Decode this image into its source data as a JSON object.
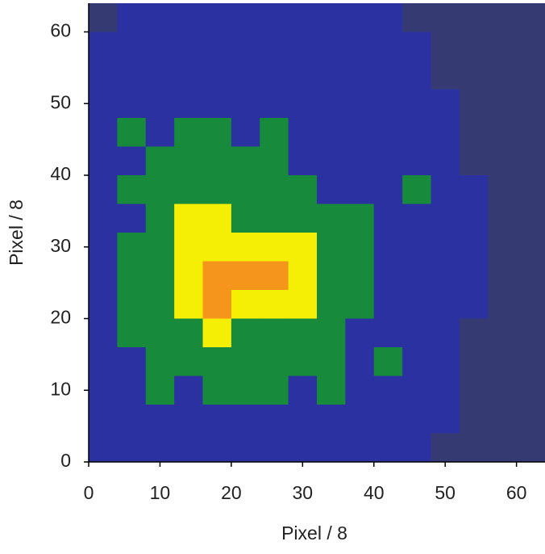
{
  "chart_data": {
    "type": "contour",
    "xlabel": "Pixel / 8",
    "ylabel": "Pixel / 8",
    "xlim": [
      0,
      64
    ],
    "ylim": [
      0,
      64
    ],
    "xticks": [
      0,
      10,
      20,
      30,
      40,
      50,
      60
    ],
    "yticks": [
      0,
      10,
      20,
      30,
      40,
      50,
      60
    ],
    "level_colors": [
      "#353a72",
      "#2b31a0",
      "#178a3c",
      "#f5ef06",
      "#f5951c"
    ],
    "z": [
      [
        0,
        1,
        1,
        1,
        1,
        1,
        1,
        1,
        1,
        1,
        1,
        0,
        0,
        0,
        0,
        0
      ],
      [
        1,
        1,
        1,
        1,
        1,
        1,
        1,
        1,
        1,
        1,
        1,
        1,
        0,
        0,
        0,
        0
      ],
      [
        1,
        1,
        1,
        1,
        1,
        1,
        1,
        1,
        1,
        1,
        1,
        1,
        0,
        0,
        0,
        0
      ],
      [
        1,
        1,
        1,
        1,
        1,
        1,
        1,
        1,
        1,
        1,
        1,
        1,
        1,
        0,
        0,
        0
      ],
      [
        1,
        2,
        1,
        2,
        2,
        1,
        2,
        1,
        1,
        1,
        1,
        1,
        1,
        0,
        0,
        0
      ],
      [
        1,
        1,
        2,
        2,
        2,
        2,
        2,
        1,
        1,
        1,
        1,
        1,
        1,
        0,
        0,
        0
      ],
      [
        1,
        2,
        2,
        2,
        2,
        2,
        2,
        2,
        1,
        1,
        1,
        2,
        1,
        1,
        0,
        0
      ],
      [
        1,
        1,
        2,
        3,
        3,
        2,
        2,
        2,
        2,
        2,
        1,
        1,
        1,
        1,
        0,
        0
      ],
      [
        1,
        2,
        2,
        3,
        3,
        3,
        3,
        3,
        2,
        2,
        1,
        1,
        1,
        1,
        0,
        0
      ],
      [
        1,
        2,
        2,
        3,
        4,
        4,
        4,
        3,
        2,
        2,
        1,
        1,
        1,
        1,
        0,
        0
      ],
      [
        1,
        2,
        2,
        3,
        4,
        3,
        3,
        3,
        2,
        2,
        1,
        1,
        1,
        1,
        0,
        0
      ],
      [
        1,
        2,
        2,
        2,
        3,
        2,
        2,
        2,
        2,
        1,
        1,
        1,
        1,
        0,
        0,
        0
      ],
      [
        1,
        1,
        2,
        2,
        2,
        2,
        2,
        2,
        2,
        1,
        2,
        1,
        1,
        0,
        0,
        0
      ],
      [
        1,
        1,
        2,
        1,
        2,
        2,
        2,
        1,
        2,
        1,
        1,
        1,
        1,
        0,
        0,
        0
      ],
      [
        1,
        1,
        1,
        1,
        1,
        1,
        1,
        1,
        1,
        1,
        1,
        1,
        1,
        0,
        0,
        0
      ],
      [
        1,
        1,
        1,
        1,
        1,
        1,
        1,
        1,
        1,
        1,
        1,
        1,
        0,
        0,
        0,
        0
      ]
    ]
  }
}
